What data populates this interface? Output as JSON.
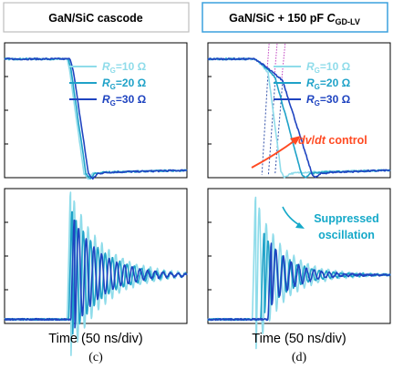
{
  "colors": {
    "rg10": "#8fdcea",
    "rg20": "#1fa2c8",
    "rg30": "#1f44c0",
    "header_left_border": "#bdbdbd",
    "header_right_border": "#3aa0dd",
    "annotation_red": "#ff4a22",
    "annotation_teal": "#15a9c9",
    "dashed_lines": "#2f4fa8",
    "dotted_lines": "#c040c0"
  },
  "chart_data": [
    {
      "type": "line",
      "panel": "top-left",
      "title": "GaN/SiC cascode",
      "xlabel": "",
      "ylabel": "",
      "ylim": [
        0,
        1
      ],
      "x": [
        0,
        5
      ],
      "series": [
        {
          "name": "R_G=10 Ω",
          "label_main": "R",
          "label_sub": "G",
          "label_rest": "=10 Ω",
          "color": "#8fdcea",
          "points": [
            [
              0,
              0.88
            ],
            [
              1.72,
              0.88
            ],
            [
              1.78,
              0.8
            ],
            [
              2.18,
              0.03
            ],
            [
              2.3,
              -0.01
            ],
            [
              2.42,
              0.03
            ],
            [
              2.7,
              0.04
            ],
            [
              5,
              0.055
            ]
          ]
        },
        {
          "name": "R_G=20 Ω",
          "label_main": "R",
          "label_sub": "G",
          "label_rest": "=20 Ω",
          "color": "#1fa2c8",
          "points": [
            [
              0,
              0.88
            ],
            [
              1.75,
              0.88
            ],
            [
              1.82,
              0.8
            ],
            [
              2.23,
              0.03
            ],
            [
              2.35,
              -0.01
            ],
            [
              2.47,
              0.03
            ],
            [
              2.75,
              0.04
            ],
            [
              5,
              0.055
            ]
          ]
        },
        {
          "name": "R_G=30 Ω",
          "label_main": "R",
          "label_sub": "G",
          "label_rest": "=30 Ω",
          "color": "#1f44c0",
          "points": [
            [
              0,
              0.88
            ],
            [
              1.8,
              0.88
            ],
            [
              1.88,
              0.8
            ],
            [
              2.3,
              0.03
            ],
            [
              2.42,
              -0.01
            ],
            [
              2.55,
              0.03
            ],
            [
              2.85,
              0.04
            ],
            [
              5,
              0.055
            ]
          ]
        }
      ]
    },
    {
      "type": "line",
      "panel": "top-right",
      "title": "GaN/SiC + 150 pF C_GD-LV",
      "title_main": "GaN/SiC + 150 pF ",
      "title_c": "C",
      "title_sub": "GD-LV",
      "xlabel": "",
      "ylabel": "",
      "ylim": [
        0,
        1
      ],
      "x": [
        0,
        5
      ],
      "annotation": "dv/dt control",
      "annotation_parts": [
        "dv",
        "/",
        "dt",
        " control"
      ],
      "series": [
        {
          "name": "R_G=10 Ω",
          "label_main": "R",
          "label_sub": "G",
          "label_rest": "=10 Ω",
          "color": "#8fdcea",
          "points": [
            [
              0,
              0.88
            ],
            [
              1.3,
              0.88
            ],
            [
              1.45,
              0.84
            ],
            [
              1.65,
              0.78
            ],
            [
              2.0,
              0.05
            ],
            [
              2.1,
              0.0
            ],
            [
              2.25,
              0.03
            ],
            [
              2.6,
              0.04
            ],
            [
              5,
              0.055
            ]
          ]
        },
        {
          "name": "R_G=20 Ω",
          "label_main": "R",
          "label_sub": "G",
          "label_rest": "=20 Ω",
          "color": "#1fa2c8",
          "points": [
            [
              0,
              0.88
            ],
            [
              1.3,
              0.88
            ],
            [
              1.5,
              0.84
            ],
            [
              1.85,
              0.74
            ],
            [
              2.55,
              0.04
            ],
            [
              2.65,
              0.0
            ],
            [
              2.8,
              0.03
            ],
            [
              3.1,
              0.04
            ],
            [
              5,
              0.055
            ]
          ]
        },
        {
          "name": "R_G=30 Ω",
          "label_main": "R",
          "label_sub": "G",
          "label_rest": "=30 Ω",
          "color": "#1f44c0",
          "points": [
            [
              0,
              0.88
            ],
            [
              1.3,
              0.88
            ],
            [
              1.55,
              0.83
            ],
            [
              2.05,
              0.72
            ],
            [
              2.85,
              0.03
            ],
            [
              2.95,
              0.0
            ],
            [
              3.1,
              0.03
            ],
            [
              3.4,
              0.04
            ],
            [
              5,
              0.055
            ]
          ]
        }
      ],
      "guides": {
        "dashed": [
          [
            [
              1.65,
              0.78
            ],
            [
              1.48,
              0.02
            ]
          ],
          [
            [
              1.85,
              0.74
            ],
            [
              1.66,
              0.02
            ]
          ],
          [
            [
              2.05,
              0.72
            ],
            [
              1.84,
              0.02
            ]
          ]
        ],
        "dotted": [
          [
            [
              1.62,
              0.78
            ],
            [
              1.68,
              1.0
            ]
          ],
          [
            [
              1.82,
              0.74
            ],
            [
              1.9,
              1.0
            ]
          ],
          [
            [
              2.02,
              0.72
            ],
            [
              2.12,
              1.0
            ]
          ]
        ]
      }
    },
    {
      "type": "line",
      "panel": "bottom-left",
      "title": "",
      "xlabel": "Time (50 ns/div)",
      "ylabel": "",
      "caption": "(c)",
      "ylim": [
        0,
        1
      ],
      "x": [
        0,
        5
      ],
      "series": [
        {
          "name": "R_G=10 Ω",
          "color": "#8fdcea",
          "t0": 1.72,
          "amp": 0.68,
          "damp": 0.9,
          "period": 0.19,
          "base": 0.03,
          "final": 0.36
        },
        {
          "name": "R_G=20 Ω",
          "color": "#1fa2c8",
          "t0": 1.76,
          "amp": 0.52,
          "damp": 0.85,
          "period": 0.2,
          "base": 0.03,
          "final": 0.36
        },
        {
          "name": "R_G=30 Ω",
          "color": "#1f44c0",
          "t0": 1.82,
          "amp": 0.45,
          "damp": 0.8,
          "period": 0.21,
          "base": 0.03,
          "final": 0.36
        }
      ]
    },
    {
      "type": "line",
      "panel": "bottom-right",
      "title": "",
      "xlabel": "Time (50 ns/div)",
      "ylabel": "",
      "caption": "(d)",
      "ylim": [
        0,
        1
      ],
      "x": [
        0,
        5
      ],
      "annotation": "Suppressed oscillation",
      "annotation_line1": "Suppressed",
      "annotation_line2": "oscillation",
      "series": [
        {
          "name": "R_G=10 Ω",
          "color": "#8fdcea",
          "t0": 1.22,
          "amp": 0.64,
          "damp": 0.75,
          "period": 0.19,
          "base": 0.03,
          "final": 0.36
        },
        {
          "name": "R_G=20 Ω",
          "color": "#1fa2c8",
          "t0": 1.45,
          "amp": 0.34,
          "damp": 0.7,
          "period": 0.2,
          "base": 0.03,
          "final": 0.36
        },
        {
          "name": "R_G=30 Ω",
          "color": "#1f44c0",
          "t0": 1.65,
          "amp": 0.26,
          "damp": 0.65,
          "period": 0.21,
          "base": 0.03,
          "final": 0.36
        }
      ]
    }
  ]
}
